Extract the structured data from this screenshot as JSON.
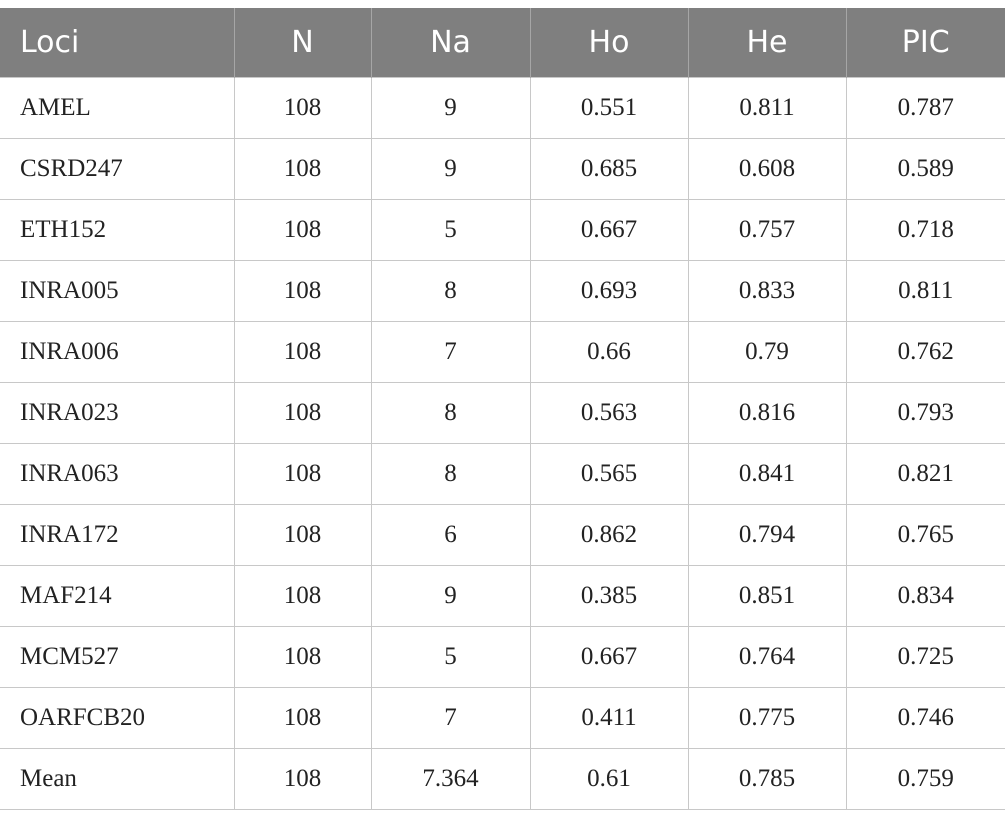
{
  "table": {
    "header": [
      "Loci",
      "N",
      "Na",
      "Ho",
      "He",
      "PIC"
    ],
    "rows": [
      [
        "AMEL",
        "108",
        "9",
        "0.551",
        "0.811",
        "0.787"
      ],
      [
        "CSRD247",
        "108",
        "9",
        "0.685",
        "0.608",
        "0.589"
      ],
      [
        "ETH152",
        "108",
        "5",
        "0.667",
        "0.757",
        "0.718"
      ],
      [
        "INRA005",
        "108",
        "8",
        "0.693",
        "0.833",
        "0.811"
      ],
      [
        "INRA006",
        "108",
        "7",
        "0.66",
        "0.79",
        "0.762"
      ],
      [
        "INRA023",
        "108",
        "8",
        "0.563",
        "0.816",
        "0.793"
      ],
      [
        "INRA063",
        "108",
        "8",
        "0.565",
        "0.841",
        "0.821"
      ],
      [
        "INRA172",
        "108",
        "6",
        "0.862",
        "0.794",
        "0.765"
      ],
      [
        "MAF214",
        "108",
        "9",
        "0.385",
        "0.851",
        "0.834"
      ],
      [
        "MCM527",
        "108",
        "5",
        "0.667",
        "0.764",
        "0.725"
      ],
      [
        "OARFCB20",
        "108",
        "7",
        "0.411",
        "0.775",
        "0.746"
      ],
      [
        "Mean",
        "108",
        "7.364",
        "0.61",
        "0.785",
        "0.759"
      ]
    ]
  }
}
